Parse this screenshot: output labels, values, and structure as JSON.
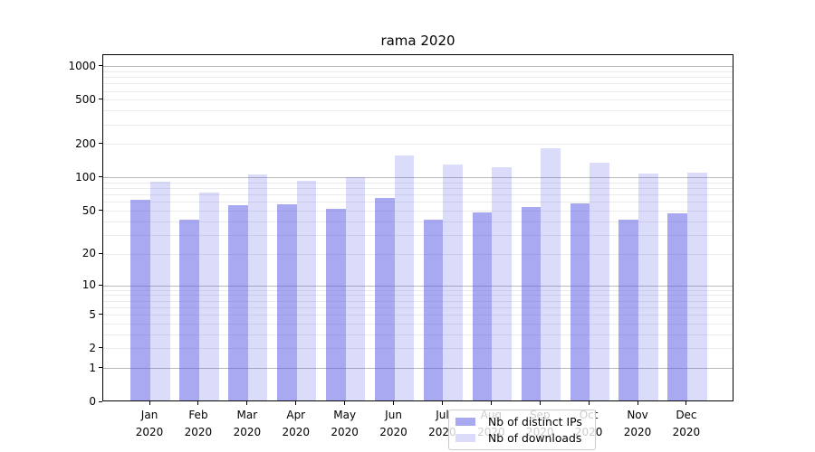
{
  "title": "rama 2020",
  "legend": {
    "items": [
      {
        "label": "Nb of distinct IPs",
        "color": "rgba(90,90,230,0.52)"
      },
      {
        "label": "Nb of downloads",
        "color": "rgba(90,90,230,0.22)"
      }
    ]
  },
  "colors": {
    "ips_bar": "rgba(90,90,230,0.52)",
    "downloads_bar": "rgba(90,90,230,0.22)",
    "grid_major": "#b9b9b9",
    "grid_minor": "#ebebeb",
    "axis": "#000000",
    "legend_border": "#cccccc"
  },
  "chart_data": {
    "type": "bar",
    "title": "rama 2020",
    "scale": "log10(value+1)",
    "categories": [
      "Jan 2020",
      "Feb 2020",
      "Mar 2020",
      "Apr 2020",
      "May 2020",
      "Jun 2020",
      "Jul 2020",
      "Aug 2020",
      "Sep 2020",
      "Oct 2020",
      "Nov 2020",
      "Dec 2020"
    ],
    "series": [
      {
        "name": "Nb of distinct IPs",
        "values": [
          61,
          40,
          55,
          56,
          51,
          63,
          40,
          47,
          53,
          57,
          40,
          46
        ]
      },
      {
        "name": "Nb of downloads",
        "values": [
          90,
          71,
          103,
          91,
          98,
          155,
          128,
          121,
          178,
          132,
          105,
          108
        ]
      }
    ],
    "y_ticks": [
      0,
      1,
      2,
      5,
      10,
      20,
      50,
      100,
      200,
      500,
      1000
    ],
    "ylim": [
      0,
      1265
    ],
    "xlabel": "",
    "ylabel": "",
    "grid": true,
    "legend_position": "lower center"
  }
}
